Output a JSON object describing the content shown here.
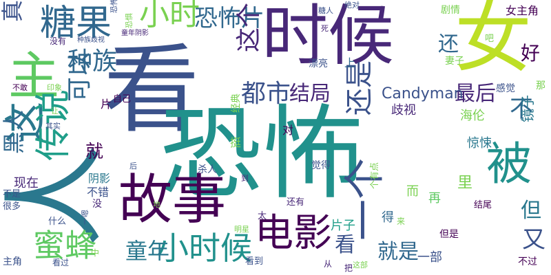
{
  "words": [
    {
      "text": "看",
      "color": "#3b528b",
      "v": false
    },
    {
      "text": "恐怖",
      "color": "#21918c",
      "v": false
    },
    {
      "text": "时候",
      "color": "#482878",
      "v": false
    },
    {
      "text": "女",
      "color": "#bddf26",
      "v": false
    },
    {
      "text": "人",
      "color": "#2a788e",
      "v": true
    },
    {
      "text": "故事",
      "color": "#440154",
      "v": false
    },
    {
      "text": "主",
      "color": "#5ec962",
      "v": false
    },
    {
      "text": "被",
      "color": "#21918c",
      "v": false
    },
    {
      "text": "这",
      "color": "#2a788e",
      "v": true
    },
    {
      "text": "糖果",
      "color": "#31688e",
      "v": false
    },
    {
      "text": "电影",
      "color": "#440154",
      "v": false
    },
    {
      "text": "一个",
      "color": "#3b528b",
      "v": true
    },
    {
      "text": "小时",
      "color": "#7ad151",
      "v": false
    },
    {
      "text": "恐怖片",
      "color": "#31688e",
      "v": false
    },
    {
      "text": "小时候",
      "color": "#21918c",
      "v": false
    },
    {
      "text": "传说",
      "color": "#1f9e89",
      "v": true
    },
    {
      "text": "蜜蜂",
      "color": "#5ec962",
      "v": false
    },
    {
      "text": "里",
      "color": "#7ad151",
      "v": false
    },
    {
      "text": "还是",
      "color": "#3b528b",
      "v": true
    },
    {
      "text": "这个",
      "color": "#482878",
      "v": true
    },
    {
      "text": "童年",
      "color": "#2a788e",
      "v": false
    },
    {
      "text": "都市",
      "color": "#3b528b",
      "v": false
    },
    {
      "text": "种族",
      "color": "#31688e",
      "v": false
    },
    {
      "text": "可以",
      "color": "#31688e",
      "v": true
    },
    {
      "text": "结局",
      "color": "#482878",
      "v": false
    },
    {
      "text": "就是",
      "color": "#31688e",
      "v": false
    },
    {
      "text": "看",
      "color": "#3b528b",
      "v": false
    },
    {
      "text": "真的",
      "color": "#3b528b",
      "v": true
    },
    {
      "text": "还",
      "color": "#31688e",
      "v": false
    },
    {
      "text": "好",
      "color": "#440154",
      "v": false
    },
    {
      "text": "最后",
      "color": "#482878",
      "v": false
    },
    {
      "text": "Candyman",
      "color": "#3b528b",
      "v": false
    },
    {
      "text": "黑人",
      "color": "#31688e",
      "v": true
    },
    {
      "text": "又",
      "color": "#3b528b",
      "v": false
    },
    {
      "text": "但",
      "color": "#2a788e",
      "v": false
    },
    {
      "text": "不",
      "color": "#31688e",
      "v": false
    },
    {
      "text": "就",
      "color": "#440154",
      "v": false
    },
    {
      "text": "镜子",
      "color": "#2a788e",
      "v": true
    },
    {
      "text": "歧视",
      "color": "#482878",
      "v": false
    },
    {
      "text": "惊悚",
      "color": "#2a788e",
      "v": false
    },
    {
      "text": "海伦",
      "color": "#7ad151",
      "v": false
    },
    {
      "text": "一部",
      "color": "#3b528b",
      "v": false
    },
    {
      "text": "片子",
      "color": "#1f9e89",
      "v": false
    },
    {
      "text": "得",
      "color": "#31688e",
      "v": false
    },
    {
      "text": "不错",
      "color": "#3b528b",
      "v": false
    },
    {
      "text": "阴影",
      "color": "#2a788e",
      "v": false
    },
    {
      "text": "现在",
      "color": "#482878",
      "v": false
    },
    {
      "text": "而",
      "color": "#7ad151",
      "v": false
    },
    {
      "text": "再",
      "color": "#5ec962",
      "v": false
    },
    {
      "text": "感觉",
      "color": "#3b528b",
      "v": false
    },
    {
      "text": "那",
      "color": "#7ad151",
      "v": false
    },
    {
      "text": "女主角",
      "color": "#440154",
      "v": false
    },
    {
      "text": "剧情",
      "color": "#7ad151",
      "v": false
    },
    {
      "text": "妻子",
      "color": "#7ad151",
      "v": false
    },
    {
      "text": "漂亮",
      "color": "#3b528b",
      "v": false
    },
    {
      "text": "上",
      "color": "#31688e",
      "v": false
    },
    {
      "text": "对",
      "color": "#440154",
      "v": false
    },
    {
      "text": "片",
      "color": "#440154",
      "v": false
    },
    {
      "text": "自己",
      "color": "#440154",
      "v": false
    },
    {
      "text": "经典",
      "color": "#7ad151",
      "v": true
    },
    {
      "text": "挺",
      "color": "#7ad151",
      "v": false
    },
    {
      "text": "杀人",
      "color": "#3b528b",
      "v": false
    },
    {
      "text": "觉得",
      "color": "#3b528b",
      "v": false
    },
    {
      "text": "还有",
      "color": "#482878",
      "v": false
    },
    {
      "text": "结尾",
      "color": "#440154",
      "v": false
    },
    {
      "text": "但是",
      "color": "#440154",
      "v": false
    },
    {
      "text": "不过",
      "color": "#440154",
      "v": false
    },
    {
      "text": "没",
      "color": "#482878",
      "v": false
    },
    {
      "text": "什么",
      "color": "#3b528b",
      "v": false
    },
    {
      "text": "很多",
      "color": "#3b528b",
      "v": false
    },
    {
      "text": "不是",
      "color": "#3b528b",
      "v": false
    },
    {
      "text": "主角",
      "color": "#3b528b",
      "v": false
    },
    {
      "text": "看过",
      "color": "#3b528b",
      "v": false
    },
    {
      "text": "中",
      "color": "#7ad151",
      "v": false
    },
    {
      "text": "看到",
      "color": "#3b528b",
      "v": false
    },
    {
      "text": "从",
      "color": "#482878",
      "v": false
    },
    {
      "text": "把",
      "color": "#482878",
      "v": false
    },
    {
      "text": "这部",
      "color": "#7ad151",
      "v": false
    },
    {
      "text": "明星",
      "color": "#7ad151",
      "v": false
    },
    {
      "text": "太",
      "color": "#482878",
      "v": false
    },
    {
      "text": "地",
      "color": "#7ad151",
      "v": false
    },
    {
      "text": "一嗯",
      "color": "#3b528b",
      "v": true
    },
    {
      "text": "到",
      "color": "#482878",
      "v": false
    },
    {
      "text": "后",
      "color": "#3b528b",
      "v": false
    },
    {
      "text": "其实",
      "color": "#3b528b",
      "v": false
    },
    {
      "text": "让",
      "color": "#7ad151",
      "v": false
    },
    {
      "text": "印象",
      "color": "#7ad151",
      "v": false
    },
    {
      "text": "不敢",
      "color": "#440154",
      "v": false
    },
    {
      "text": "没有",
      "color": "#482878",
      "v": false
    },
    {
      "text": "种族歧视",
      "color": "#3b528b",
      "v": false
    },
    {
      "text": "童年阴影",
      "color": "#482878",
      "v": false
    },
    {
      "text": "恐怖",
      "color": "#3b528b",
      "v": true
    },
    {
      "text": "恐惧",
      "color": "#7ad151",
      "v": true
    },
    {
      "text": "糖人",
      "color": "#3b528b",
      "v": false
    },
    {
      "text": "绝对",
      "color": "#3b528b",
      "v": false
    },
    {
      "text": "死",
      "color": "#482878",
      "v": false
    },
    {
      "text": "吧",
      "color": "#7ad151",
      "v": false
    },
    {
      "text": "个有点",
      "color": "#7ad151",
      "v": true
    },
    {
      "text": "来",
      "color": "#7ad151",
      "v": false
    }
  ]
}
